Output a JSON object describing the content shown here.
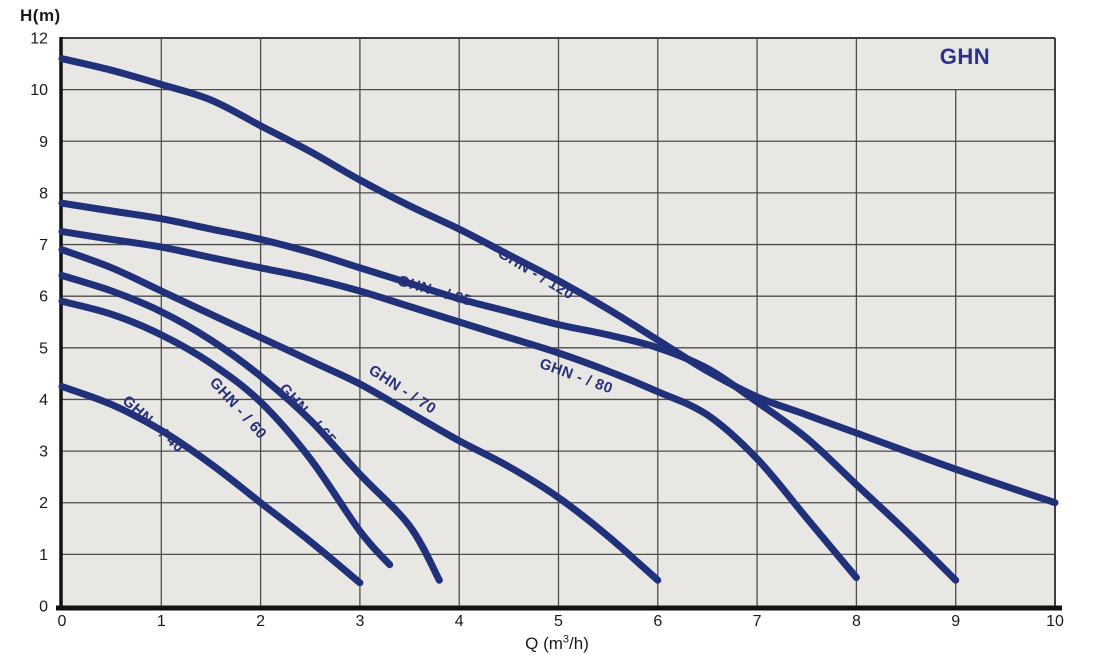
{
  "chart_data": {
    "type": "line",
    "title": "GHN",
    "title_color": "#2b3093",
    "ylabel": "H(m)",
    "xlabel_parts": {
      "prefix": "Q (m",
      "sup": "3",
      "suffix": "/h)"
    },
    "x_range": [
      0,
      10
    ],
    "y_range": [
      0,
      12
    ],
    "x_ticks": [
      0,
      1,
      2,
      3,
      4,
      5,
      6,
      7,
      8,
      9,
      10
    ],
    "y_tick_labels": [
      12,
      10,
      9,
      8,
      7,
      6,
      5,
      4,
      3,
      2,
      1,
      0
    ],
    "y_axis_note": "tick label 11 is not shown; the top grid row spans 10 to 12",
    "grid": true,
    "legend_position": "labels-on-curves",
    "plot_bg": "#e8e7e4",
    "grid_color": "#4d4d4d",
    "axis_color": "#111111",
    "tick_text_color": "#1a1a1a",
    "curve_color": "#20317a",
    "curve_label_color": "#273079",
    "series": [
      {
        "name": "GHN - / 120",
        "points": [
          [
            0,
            11.2
          ],
          [
            0.5,
            10.75
          ],
          [
            1,
            10.2
          ],
          [
            1.5,
            9.8
          ],
          [
            2,
            9.3
          ],
          [
            2.5,
            8.8
          ],
          [
            3,
            8.25
          ],
          [
            3.5,
            7.75
          ],
          [
            4,
            7.3
          ],
          [
            4.5,
            6.8
          ],
          [
            5,
            6.3
          ],
          [
            5.5,
            5.75
          ],
          [
            6,
            5.15
          ],
          [
            6.5,
            4.55
          ],
          [
            7,
            4.05
          ],
          [
            7.5,
            3.7
          ],
          [
            8,
            3.35
          ],
          [
            9,
            2.65
          ],
          [
            10,
            2.0
          ]
        ],
        "label": {
          "q": 4.38,
          "h": 6.78,
          "angle": 31
        }
      },
      {
        "name": "GHN - / 85",
        "points": [
          [
            0,
            7.8
          ],
          [
            0.5,
            7.65
          ],
          [
            1,
            7.5
          ],
          [
            1.5,
            7.3
          ],
          [
            2,
            7.1
          ],
          [
            2.5,
            6.85
          ],
          [
            3,
            6.55
          ],
          [
            3.5,
            6.25
          ],
          [
            4,
            5.95
          ],
          [
            4.5,
            5.7
          ],
          [
            5,
            5.45
          ],
          [
            5.5,
            5.25
          ],
          [
            6,
            5.0
          ],
          [
            6.5,
            4.6
          ],
          [
            7,
            3.95
          ],
          [
            7.5,
            3.25
          ],
          [
            8,
            2.35
          ],
          [
            8.5,
            1.45
          ],
          [
            9,
            0.5
          ]
        ],
        "label": {
          "q": 3.37,
          "h": 6.22,
          "angle": 16
        }
      },
      {
        "name": "GHN - / 80",
        "points": [
          [
            0,
            7.25
          ],
          [
            0.5,
            7.1
          ],
          [
            1,
            6.95
          ],
          [
            1.5,
            6.75
          ],
          [
            2,
            6.55
          ],
          [
            2.5,
            6.35
          ],
          [
            3,
            6.1
          ],
          [
            3.5,
            5.8
          ],
          [
            4,
            5.5
          ],
          [
            4.5,
            5.2
          ],
          [
            5,
            4.9
          ],
          [
            5.5,
            4.55
          ],
          [
            6,
            4.15
          ],
          [
            6.5,
            3.7
          ],
          [
            7,
            2.85
          ],
          [
            7.5,
            1.7
          ],
          [
            8,
            0.55
          ]
        ],
        "label": {
          "q": 4.8,
          "h": 4.62,
          "angle": 20
        }
      },
      {
        "name": "GHN - / 70",
        "points": [
          [
            0,
            6.9
          ],
          [
            0.5,
            6.55
          ],
          [
            1,
            6.1
          ],
          [
            1.5,
            5.65
          ],
          [
            2,
            5.2
          ],
          [
            2.5,
            4.75
          ],
          [
            3,
            4.3
          ],
          [
            3.5,
            3.75
          ],
          [
            4,
            3.2
          ],
          [
            4.5,
            2.7
          ],
          [
            5,
            2.1
          ],
          [
            5.5,
            1.35
          ],
          [
            6,
            0.5
          ]
        ],
        "label": {
          "q": 3.08,
          "h": 4.52,
          "angle": 33
        }
      },
      {
        "name": "GHN - / 65",
        "points": [
          [
            0,
            6.4
          ],
          [
            0.5,
            6.1
          ],
          [
            1,
            5.7
          ],
          [
            1.5,
            5.15
          ],
          [
            2,
            4.45
          ],
          [
            2.5,
            3.6
          ],
          [
            3,
            2.55
          ],
          [
            3.5,
            1.55
          ],
          [
            3.8,
            0.5
          ]
        ],
        "label": {
          "q": 2.18,
          "h": 4.2,
          "angle": 48
        }
      },
      {
        "name": "GHN - / 60",
        "points": [
          [
            0,
            5.9
          ],
          [
            0.5,
            5.65
          ],
          [
            1,
            5.25
          ],
          [
            1.5,
            4.7
          ],
          [
            2,
            3.95
          ],
          [
            2.5,
            2.85
          ],
          [
            3,
            1.45
          ],
          [
            3.3,
            0.8
          ]
        ],
        "label": {
          "q": 1.48,
          "h": 4.32,
          "angle": 48
        }
      },
      {
        "name": "GHN - / 40",
        "points": [
          [
            0,
            4.25
          ],
          [
            0.5,
            3.9
          ],
          [
            1,
            3.4
          ],
          [
            1.5,
            2.75
          ],
          [
            2,
            2.0
          ],
          [
            2.5,
            1.25
          ],
          [
            3,
            0.45
          ]
        ],
        "label": {
          "q": 0.6,
          "h": 3.95,
          "angle": 42
        }
      }
    ]
  }
}
